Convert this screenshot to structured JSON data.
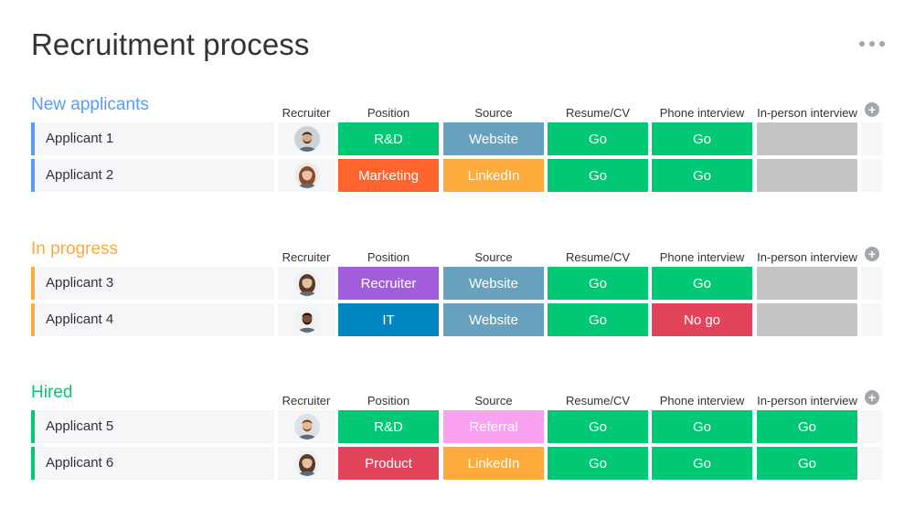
{
  "board": {
    "title": "Recruitment process"
  },
  "columns": [
    "Recruiter",
    "Position",
    "Source",
    "Resume/CV",
    "Phone interview",
    "In-person interview"
  ],
  "colors": {
    "go": "#00c875",
    "no_go": "#e2445c",
    "empty": "#c4c4c4",
    "rd": "#00c875",
    "marketing": "#ff642e",
    "recruiter_pos": "#a25ddc",
    "it": "#0086c0",
    "product": "#e2445c",
    "website": "#68a1bd",
    "linkedin": "#fdab3d",
    "referral": "#faa1f1"
  },
  "groups": [
    {
      "title": "New applicants",
      "color": "#579bfc",
      "rows": [
        {
          "name": "Applicant 1",
          "avatar": "man-beard",
          "position": {
            "label": "R&D",
            "color": "#00c875"
          },
          "source": {
            "label": "Website",
            "color": "#68a1bd"
          },
          "resume": {
            "label": "Go",
            "color": "#00c875"
          },
          "phone": {
            "label": "Go",
            "color": "#00c875"
          },
          "inperson": {
            "label": "",
            "color": "#c4c4c4"
          }
        },
        {
          "name": "Applicant 2",
          "avatar": "woman-curly",
          "position": {
            "label": "Marketing",
            "color": "#ff642e"
          },
          "source": {
            "label": "LinkedIn",
            "color": "#fdab3d"
          },
          "resume": {
            "label": "Go",
            "color": "#00c875"
          },
          "phone": {
            "label": "Go",
            "color": "#00c875"
          },
          "inperson": {
            "label": "",
            "color": "#c4c4c4"
          }
        }
      ]
    },
    {
      "title": "In progress",
      "color": "#fdab3d",
      "rows": [
        {
          "name": "Applicant 3",
          "avatar": "woman-long-hair",
          "position": {
            "label": "Recruiter",
            "color": "#a25ddc"
          },
          "source": {
            "label": "Website",
            "color": "#68a1bd"
          },
          "resume": {
            "label": "Go",
            "color": "#00c875"
          },
          "phone": {
            "label": "Go",
            "color": "#00c875"
          },
          "inperson": {
            "label": "",
            "color": "#c4c4c4"
          }
        },
        {
          "name": "Applicant 4",
          "avatar": "man-dark",
          "position": {
            "label": "IT",
            "color": "#0086c0"
          },
          "source": {
            "label": "Website",
            "color": "#68a1bd"
          },
          "resume": {
            "label": "Go",
            "color": "#00c875"
          },
          "phone": {
            "label": "No go",
            "color": "#e2445c"
          },
          "inperson": {
            "label": "",
            "color": "#c4c4c4"
          }
        }
      ]
    },
    {
      "title": "Hired",
      "color": "#00c875",
      "rows": [
        {
          "name": "Applicant 5",
          "avatar": "man-smile",
          "position": {
            "label": "R&D",
            "color": "#00c875"
          },
          "source": {
            "label": "Referral",
            "color": "#faa1f1"
          },
          "resume": {
            "label": "Go",
            "color": "#00c875"
          },
          "phone": {
            "label": "Go",
            "color": "#00c875"
          },
          "inperson": {
            "label": "Go",
            "color": "#00c875"
          }
        },
        {
          "name": "Applicant 6",
          "avatar": "woman-long-hair",
          "position": {
            "label": "Product",
            "color": "#e2445c"
          },
          "source": {
            "label": "LinkedIn",
            "color": "#fdab3d"
          },
          "resume": {
            "label": "Go",
            "color": "#00c875"
          },
          "phone": {
            "label": "Go",
            "color": "#00c875"
          },
          "inperson": {
            "label": "Go",
            "color": "#00c875"
          }
        }
      ]
    }
  ]
}
